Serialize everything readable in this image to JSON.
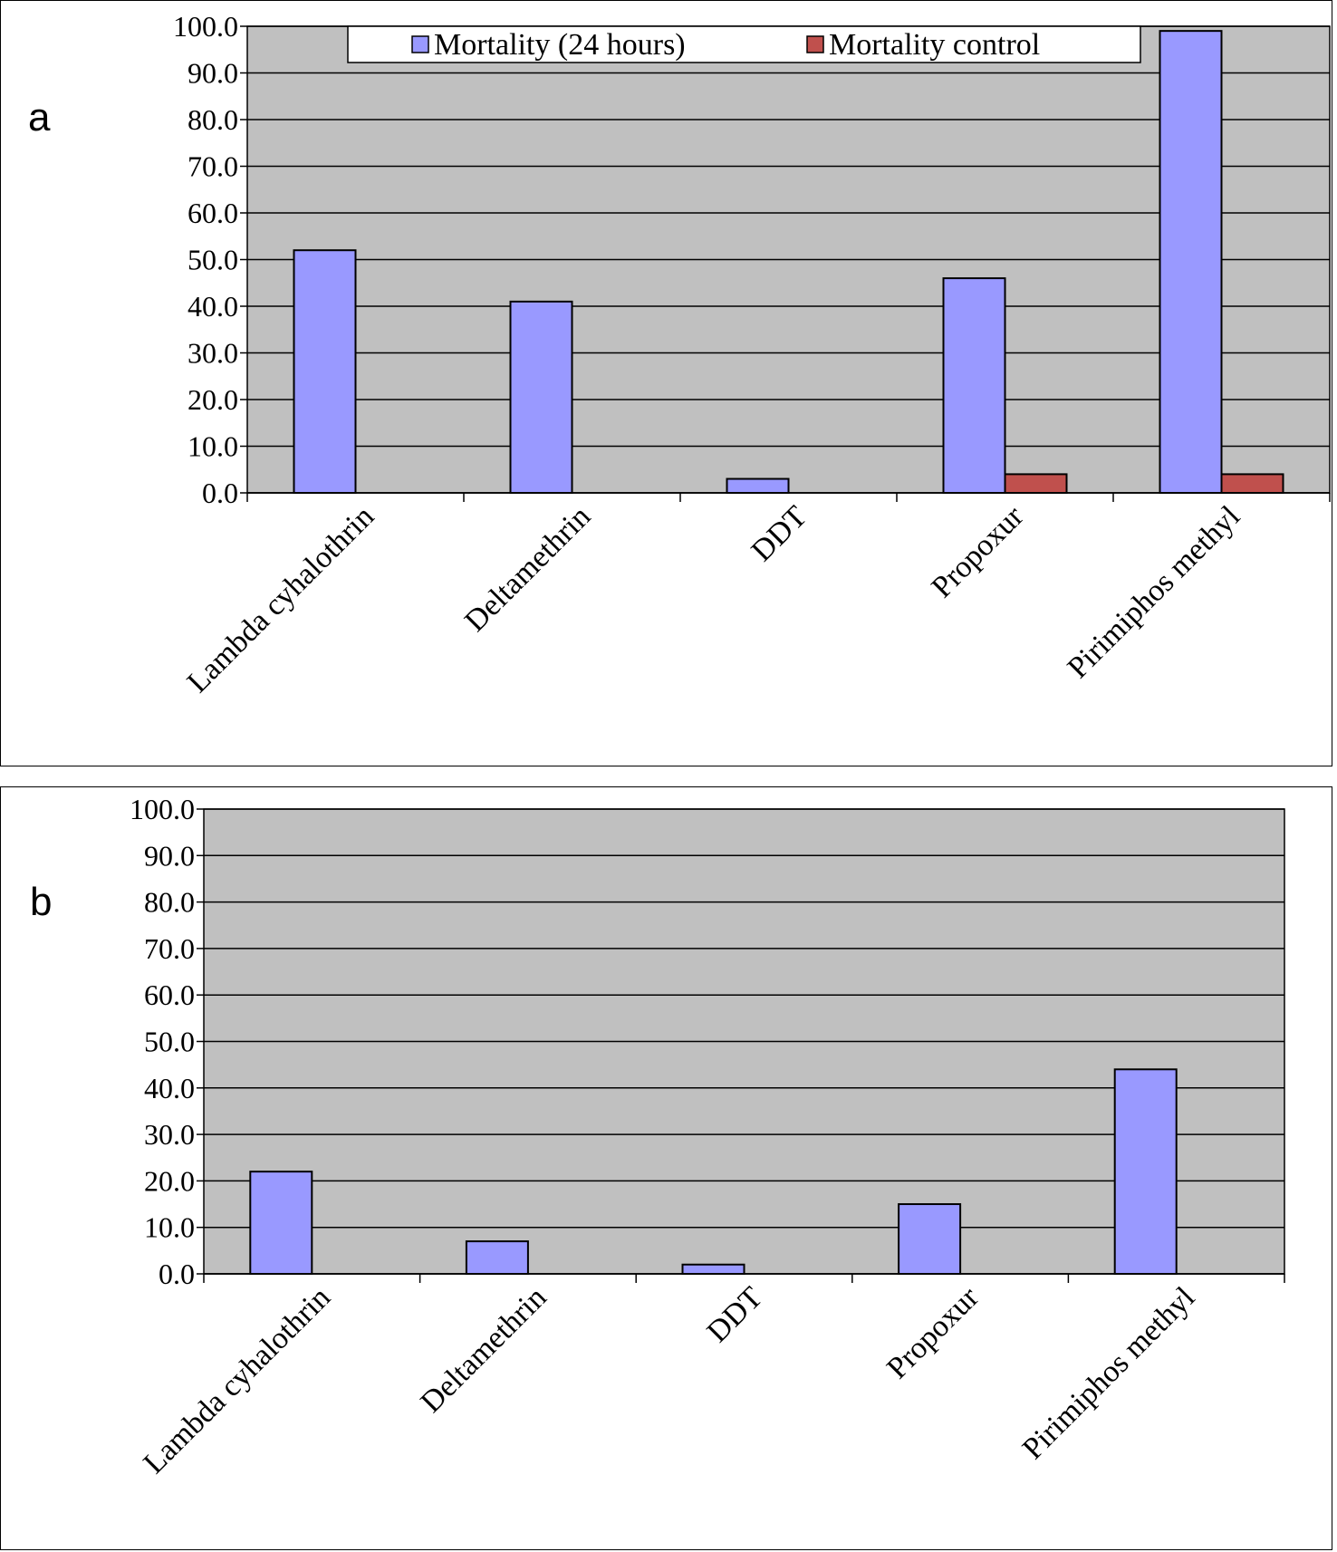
{
  "colors": {
    "plot_bg": "#c0c0c0",
    "series_24h": "#9999ff",
    "series_control": "#c0504d",
    "grid": "#000000"
  },
  "chart_data": [
    {
      "panel": "a",
      "type": "bar",
      "categories": [
        "Lambda cyhalothrin",
        "Deltamethrin",
        "DDT",
        "Propoxur",
        "Pirimiphos methyl"
      ],
      "series": [
        {
          "name": "Mortality (24 hours)",
          "values": [
            52.0,
            41.0,
            3.0,
            46.0,
            99.0
          ]
        },
        {
          "name": "Mortality control",
          "values": [
            0.0,
            0.0,
            0.0,
            4.0,
            4.0
          ]
        }
      ],
      "ylim": [
        0,
        100
      ],
      "yticks": [
        "0.0",
        "10.0",
        "20.0",
        "30.0",
        "40.0",
        "50.0",
        "60.0",
        "70.0",
        "80.0",
        "90.0",
        "100.0"
      ],
      "grid": true,
      "legend": "top-center"
    },
    {
      "panel": "b",
      "type": "bar",
      "categories": [
        "Lambda cyhalothrin",
        "Deltamethrin",
        "DDT",
        "Propoxur",
        "Pirimiphos methyl"
      ],
      "series": [
        {
          "values": [
            22.0,
            7.0,
            2.0,
            15.0,
            44.0
          ]
        }
      ],
      "ylim": [
        0,
        100
      ],
      "yticks": [
        "0.0",
        "10.0",
        "20.0",
        "30.0",
        "40.0",
        "50.0",
        "60.0",
        "70.0",
        "80.0",
        "90.0",
        "100.0"
      ],
      "grid": true
    }
  ]
}
